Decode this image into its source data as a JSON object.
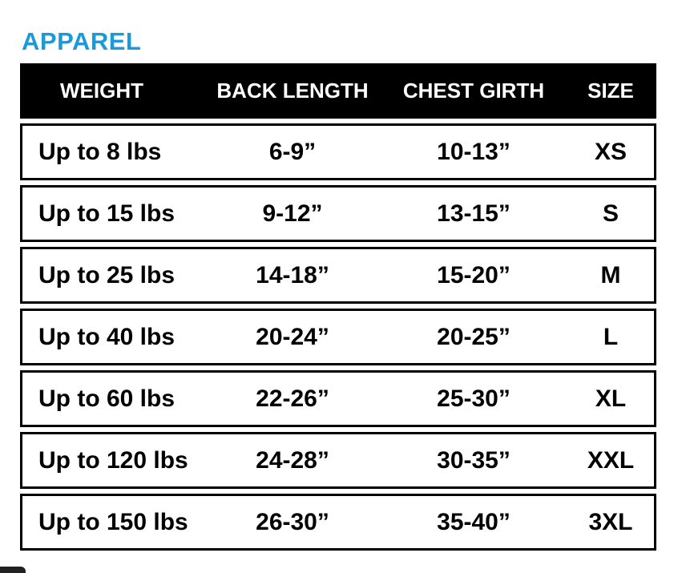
{
  "title": "APPAREL",
  "columns": [
    "WEIGHT",
    "BACK LENGTH",
    "CHEST GIRTH",
    "SIZE"
  ],
  "rows": [
    [
      "Up to 8 lbs",
      "6-9”",
      "10-13”",
      "XS"
    ],
    [
      "Up to 15 lbs",
      "9-12”",
      "13-15”",
      "S"
    ],
    [
      "Up to 25 lbs",
      "14-18”",
      "15-20”",
      "M"
    ],
    [
      "Up to 40 lbs",
      "20-24”",
      "20-25”",
      "L"
    ],
    [
      "Up to 60 lbs",
      "22-26”",
      "25-30”",
      "XL"
    ],
    [
      "Up to 120 lbs",
      "24-28”",
      "30-35”",
      "XXL"
    ],
    [
      "Up to 150 lbs",
      "26-30”",
      "35-40”",
      "3XL"
    ]
  ],
  "colors": {
    "title": "#1a9ad9",
    "header_bg": "#000000",
    "header_text": "#ffffff"
  }
}
